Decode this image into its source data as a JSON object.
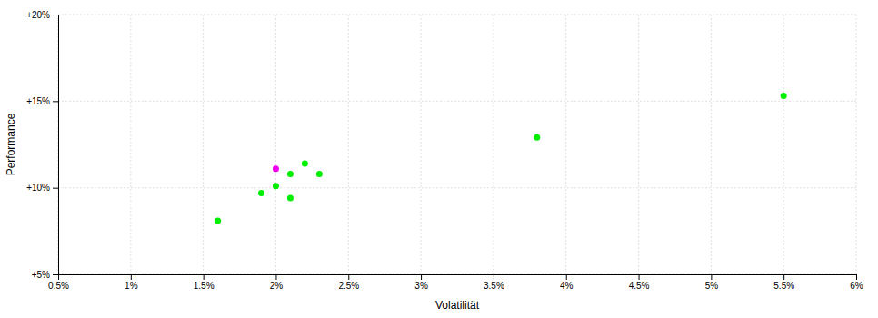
{
  "chart_data": {
    "type": "scatter",
    "x_label": "Volatilität",
    "y_label": "Performance",
    "xlim": [
      0.005,
      0.06
    ],
    "ylim": [
      0.05,
      0.2
    ],
    "xticks": [
      {
        "value": 0.005,
        "label": "0.5%"
      },
      {
        "value": 0.01,
        "label": "1%"
      },
      {
        "value": 0.015,
        "label": "1.5%"
      },
      {
        "value": 0.02,
        "label": "2%"
      },
      {
        "value": 0.025,
        "label": "2.5%"
      },
      {
        "value": 0.03,
        "label": "3%"
      },
      {
        "value": 0.035,
        "label": "3.5%"
      },
      {
        "value": 0.04,
        "label": "4%"
      },
      {
        "value": 0.045,
        "label": "4.5%"
      },
      {
        "value": 0.05,
        "label": "5%"
      },
      {
        "value": 0.055,
        "label": "5.5%"
      },
      {
        "value": 0.06,
        "label": "6%"
      }
    ],
    "yticks": [
      {
        "value": 0.05,
        "label": "+5%"
      },
      {
        "value": 0.1,
        "label": "+10%"
      },
      {
        "value": 0.15,
        "label": "+15%"
      },
      {
        "value": 0.2,
        "label": "+20%"
      }
    ],
    "grid": true,
    "series": [
      {
        "color": "#00ee00",
        "x": [
          0.022,
          0.023,
          0.021,
          0.02,
          0.019,
          0.021,
          0.016,
          0.038,
          0.055
        ],
        "values": [
          0.114,
          0.108,
          0.108,
          0.101,
          0.097,
          0.094,
          0.081,
          0.129,
          0.153
        ]
      },
      {
        "color": "#ee00ee",
        "x": [
          0.02
        ],
        "values": [
          0.111
        ]
      }
    ]
  }
}
